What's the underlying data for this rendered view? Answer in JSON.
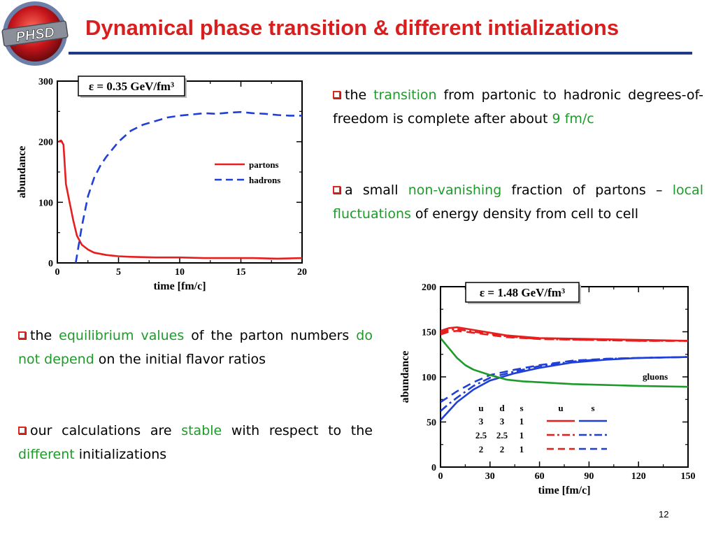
{
  "title": "Dynamical phase transition & different intializations",
  "logo_text": "PHSD",
  "page_number": "12",
  "bullets_right": [
    {
      "segments": [
        {
          "text": "the ",
          "hl": false
        },
        {
          "text": "transition",
          "hl": true
        },
        {
          "text": " from partonic to hadronic degrees-of-freedom is complete after about ",
          "hl": false
        },
        {
          "text": "9 fm/c",
          "hl": true
        }
      ]
    },
    {
      "segments": [
        {
          "text": "a small ",
          "hl": false
        },
        {
          "text": "non-vanishing",
          "hl": true
        },
        {
          "text": " fraction of partons – ",
          "hl": false
        },
        {
          "text": "local fluctuations",
          "hl": true
        },
        {
          "text": " of energy density from cell to cell",
          "hl": false
        }
      ]
    }
  ],
  "bullets_left": [
    {
      "segments": [
        {
          "text": "the ",
          "hl": false
        },
        {
          "text": "equilibrium values",
          "hl": true
        },
        {
          "text": " of the parton numbers ",
          "hl": false
        },
        {
          "text": "do not depend",
          "hl": true
        },
        {
          "text": " on the initial flavor ratios",
          "hl": false
        }
      ]
    },
    {
      "segments": [
        {
          "text": "our calculations are ",
          "hl": false
        },
        {
          "text": "stable",
          "hl": true
        },
        {
          "text": " with respect to the ",
          "hl": false
        },
        {
          "text": "different",
          "hl": true
        },
        {
          "text": " initializations",
          "hl": false
        }
      ]
    }
  ],
  "colors": {
    "red": "#e61e1e",
    "blue": "#1f3fd6",
    "green": "#1e9a2a",
    "title": "#d81f1f",
    "rule": "#1f3a8c"
  },
  "chart_data": [
    {
      "type": "line",
      "annotation": "ε = 0.35 GeV/fm³",
      "xlabel": "time [fm/c]",
      "ylabel": "abundance",
      "xlim": [
        0,
        20
      ],
      "ylim": [
        0,
        300
      ],
      "xticks": [
        "0",
        "5",
        "10",
        "15",
        "20"
      ],
      "yticks": [
        "0",
        "100",
        "200",
        "300"
      ],
      "legend_position": "right",
      "series": [
        {
          "name": "partons",
          "style": "solid",
          "color": "#e61e1e",
          "x": [
            0.1,
            0.3,
            0.5,
            0.7,
            1.0,
            1.3,
            1.6,
            2.0,
            2.5,
            3.0,
            4.0,
            5.0,
            6.0,
            8.0,
            10.0,
            12.0,
            14.0,
            16.0,
            18.0,
            20.0
          ],
          "y": [
            200,
            202,
            195,
            130,
            100,
            70,
            45,
            30,
            22,
            17,
            13,
            11,
            10,
            9,
            9,
            8,
            8,
            8,
            7,
            8
          ]
        },
        {
          "name": "hadrons",
          "style": "dashed",
          "color": "#1f3fd6",
          "x": [
            1.5,
            2.0,
            2.5,
            3.0,
            3.5,
            4.0,
            5.0,
            6.0,
            7.0,
            8.0,
            9.0,
            10.0,
            11.0,
            12.0,
            13.0,
            14.0,
            15.0,
            16.0,
            17.0,
            18.0,
            19.0,
            20.0
          ],
          "y": [
            0,
            60,
            110,
            140,
            160,
            175,
            200,
            218,
            228,
            234,
            240,
            243,
            245,
            247,
            246,
            248,
            249,
            247,
            246,
            244,
            243,
            243
          ]
        }
      ]
    },
    {
      "type": "line",
      "annotation": "ε = 1.48 GeV/fm³",
      "xlabel": "time [fm/c]",
      "ylabel": "abundance",
      "xlim": [
        0,
        150
      ],
      "ylim": [
        0,
        200
      ],
      "xticks": [
        "0",
        "30",
        "60",
        "90",
        "120",
        "150"
      ],
      "yticks": [
        "0",
        "50",
        "100",
        "150",
        "200"
      ],
      "label_gluons": "gluons",
      "table": {
        "headers": [
          "u",
          "d",
          "s",
          "u",
          "s"
        ],
        "rows": [
          [
            "3",
            "3",
            "1"
          ],
          [
            "2.5",
            "2.5",
            "1"
          ],
          [
            "2",
            "2",
            "1"
          ]
        ]
      },
      "series": [
        {
          "name": "u",
          "init": "3 3 1",
          "style": "solid",
          "color": "#e61e1e",
          "x": [
            0,
            5,
            10,
            20,
            40,
            60,
            90,
            120,
            150
          ],
          "y": [
            151,
            154,
            155,
            152,
            146,
            143,
            142,
            141,
            140
          ]
        },
        {
          "name": "u",
          "init": "2.5 2.5 1",
          "style": "dashdot",
          "color": "#e61e1e",
          "x": [
            0,
            5,
            10,
            20,
            40,
            60,
            90,
            120,
            150
          ],
          "y": [
            149,
            152,
            153,
            150,
            145,
            142,
            141,
            140,
            140
          ]
        },
        {
          "name": "u",
          "init": "2 2 1",
          "style": "dashed",
          "color": "#e61e1e",
          "x": [
            0,
            5,
            10,
            20,
            40,
            60,
            90,
            120,
            150
          ],
          "y": [
            147,
            150,
            151,
            149,
            144,
            142,
            141,
            140,
            140
          ]
        },
        {
          "name": "s",
          "init": "3 3 1",
          "style": "solid",
          "color": "#1f3fd6",
          "x": [
            0,
            5,
            10,
            20,
            30,
            45,
            60,
            80,
            100,
            120,
            150
          ],
          "y": [
            52,
            62,
            72,
            86,
            96,
            104,
            110,
            116,
            119,
            121,
            122
          ]
        },
        {
          "name": "s",
          "init": "2.5 2.5 1",
          "style": "dashdot",
          "color": "#1f3fd6",
          "x": [
            0,
            5,
            10,
            20,
            30,
            45,
            60,
            80,
            100,
            120,
            150
          ],
          "y": [
            62,
            70,
            77,
            90,
            99,
            106,
            112,
            117,
            120,
            121,
            122
          ]
        },
        {
          "name": "s",
          "init": "2 2 1",
          "style": "dashed",
          "color": "#1f3fd6",
          "x": [
            0,
            5,
            10,
            20,
            30,
            45,
            60,
            80,
            100,
            120,
            150
          ],
          "y": [
            72,
            78,
            84,
            94,
            102,
            108,
            113,
            118,
            120,
            121,
            122
          ]
        },
        {
          "name": "gluons",
          "style": "solid",
          "color": "#1e9a2a",
          "x": [
            0,
            5,
            10,
            15,
            20,
            30,
            40,
            50,
            60,
            80,
            100,
            120,
            150
          ],
          "y": [
            143,
            132,
            121,
            113,
            108,
            102,
            97,
            95,
            94,
            92,
            91,
            90,
            89
          ]
        }
      ]
    }
  ]
}
